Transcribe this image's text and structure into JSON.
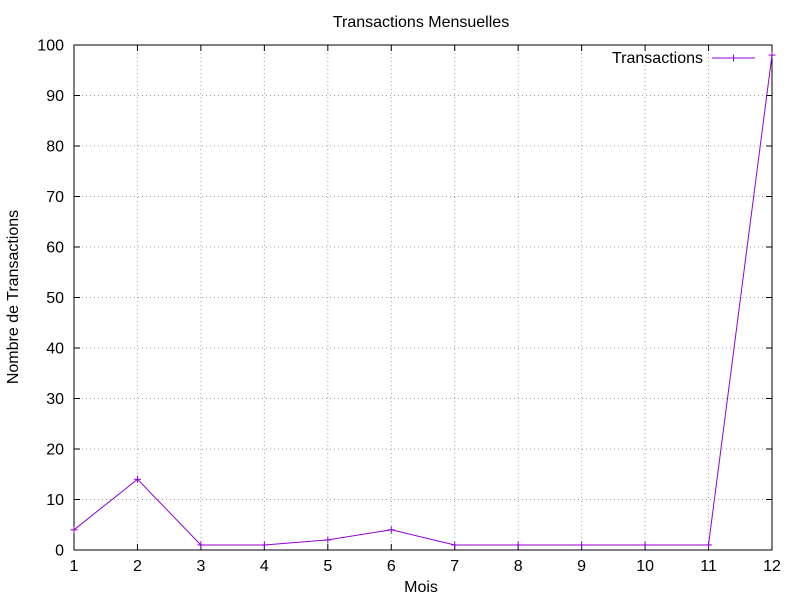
{
  "chart_data": {
    "type": "line",
    "title": "Transactions Mensuelles",
    "xlabel": "Mois",
    "ylabel": "Nombre de Transactions",
    "x": [
      1,
      2,
      3,
      4,
      5,
      6,
      7,
      8,
      9,
      10,
      11,
      12
    ],
    "xlim": [
      1,
      12
    ],
    "ylim": [
      0,
      100
    ],
    "xticks": [
      "1",
      "2",
      "3",
      "4",
      "5",
      "6",
      "7",
      "8",
      "9",
      "10",
      "11",
      "12"
    ],
    "yticks": [
      "0",
      "10",
      "20",
      "30",
      "40",
      "50",
      "60",
      "70",
      "80",
      "90",
      "100"
    ],
    "grid": true,
    "legend_position": "top-right",
    "series": [
      {
        "name": "Transactions",
        "color": "#9400d3",
        "marker": "plus",
        "values": [
          4,
          14,
          1,
          1,
          2,
          4,
          1,
          1,
          1,
          1,
          1,
          98
        ]
      }
    ]
  }
}
